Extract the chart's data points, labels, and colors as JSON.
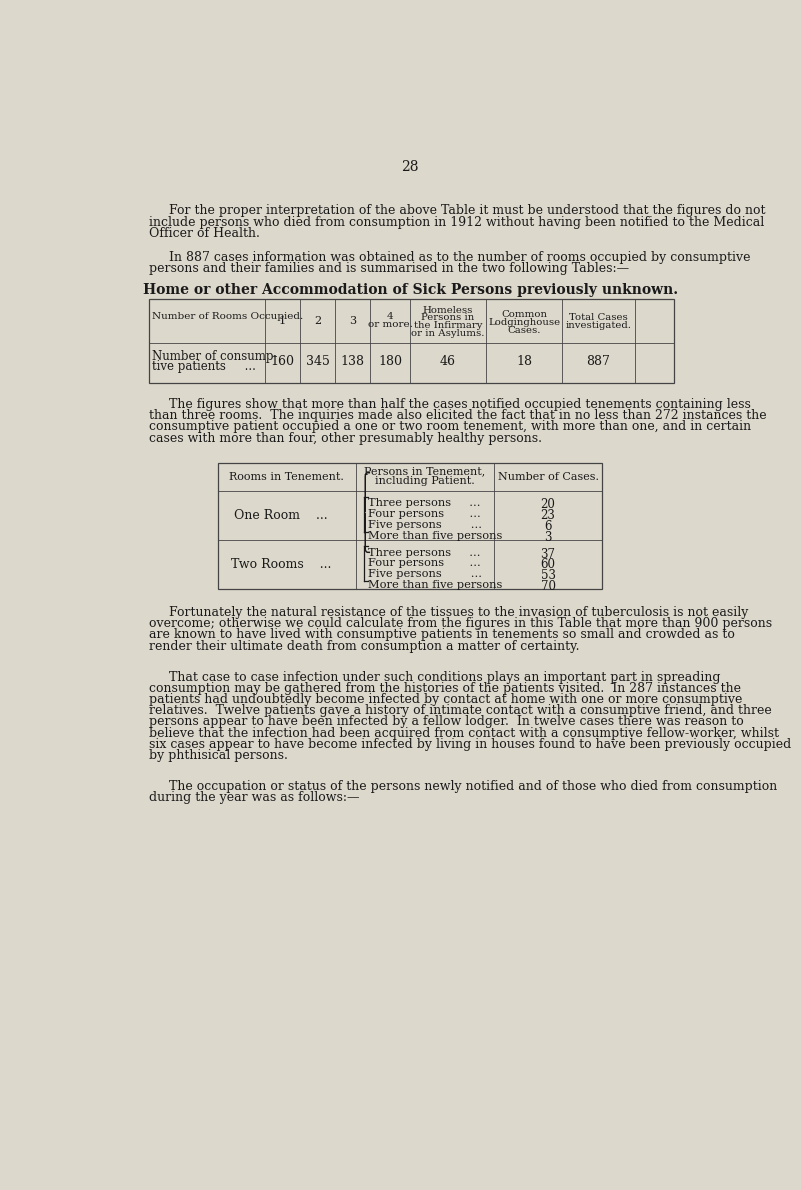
{
  "page_number": "28",
  "bg_color": "#ddd8cc",
  "text_color": "#1a1a1a",
  "para1_indent": "     For the proper interpretation of the above Table it must be understood that the figures do not",
  "para1_line2": "include persons who died from consumption in 1912 without having been notified to the Medical",
  "para1_line3": "Officer of Health.",
  "para2_indent": "     In 887 cases information was obtained as to the number of rooms occupied by consumptive",
  "para2_line2": "persons and their families and is summarised in the two following Tables:—",
  "table1_title": "Home or other Accommodation of Sick Persons previously unknown.",
  "table1_col_headers": [
    "Number of Rooms Occupied.",
    "1",
    "2",
    "3",
    "4\nor more.",
    "Homeless\nPersons in\nthe Infirmary\nor in Asylums.",
    "Common\nLodginghouse\nCases.",
    "Total Cases\ninvestigated."
  ],
  "table1_row_label1": "Number of consump-",
  "table1_row_label2": "tive patients     ...",
  "table1_values": [
    "160",
    "345",
    "138",
    "180",
    "46",
    "18",
    "887"
  ],
  "para3_line1": "     The figures show that more than half the cases notified occupied tenements containing less",
  "para3_line2": "than three rooms.  The inquiries made also elicited the fact that in no less than 272 instances the",
  "para3_line3": "consumptive patient occupied a one or two room tenement, with more than one, and in certain",
  "para3_line4": "cases with more than four, other presumably healthy persons.",
  "table2_col1_header": "Rooms in Tenement.",
  "table2_col2_header_line1": "Persons in Tenement,",
  "table2_col2_header_line2": "including Patient.",
  "table2_col3_header": "Number of Cases.",
  "table2_row1_room": "One Room",
  "table2_row1_persons": [
    "Three persons     ...",
    "Four persons       ...",
    "Five persons        ...",
    "More than five persons"
  ],
  "table2_row1_cases": [
    "20",
    "23",
    "6",
    "3"
  ],
  "table2_row2_room": "Two Rooms",
  "table2_row2_persons": [
    "Three persons     ...",
    "Four persons       ...",
    "Five persons        ...",
    "More than five persons"
  ],
  "table2_row2_cases": [
    "37",
    "60",
    "53",
    "70"
  ],
  "para4_line1": "     Fortunately the natural resistance of the tissues to the invasion of tuberculosis is not easily",
  "para4_line2": "overcome; otherwise we could calculate from the figures in this Table that more than 900 persons",
  "para4_line3": "are known to have lived with consumptive patients in tenements so small and crowded as to",
  "para4_line4": "render their ultimate death from consumption a matter of certainty.",
  "para5_line1": "     That case to case infection under such conditions plays an important part in spreading",
  "para5_line2": "consumption may be gathered from the histories of the patients visited.  In 287 instances the",
  "para5_line3": "patients had undoubtedly become infected by contact at home with one or more consumptive",
  "para5_line4": "relatives.  Twelve patients gave a history of intimate contact with a consumptive friend, and three",
  "para5_line5": "persons appear to have been infected by a fellow lodger.  In twelve cases there was reason to",
  "para5_line6": "believe that the infection had been acquired from contact with a consumptive fellow-worker, whilst",
  "para5_line7": "six cases appear to have become infected by living in houses found to have been previously occupied",
  "para5_line8": "by phthisical persons.",
  "para6_line1": "     The occupation or status of the persons newly notified and of those who died from consumption",
  "para6_line2": "during the year was as follows:—"
}
